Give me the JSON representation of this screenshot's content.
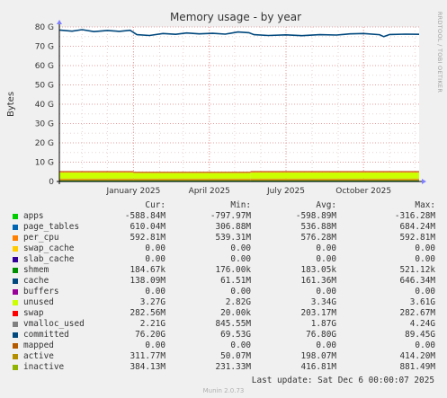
{
  "chart_data": {
    "type": "area",
    "title": "Memory usage - by year",
    "ylabel": "Bytes",
    "side_text": "RRDTOOL / TOBI OETIKER",
    "y_unit": "G",
    "ylim": [
      0,
      80
    ],
    "y_ticks": [
      0,
      10,
      20,
      30,
      40,
      50,
      60,
      70,
      80
    ],
    "y_tick_labels": [
      "0",
      "10 G",
      "20 G",
      "30 G",
      "40 G",
      "50 G",
      "60 G",
      "70 G",
      "80 G"
    ],
    "x_range": [
      "2024-10-05",
      "2025-12-06"
    ],
    "x_ticks": [
      {
        "label": "January 2025",
        "date": "2025-01-01"
      },
      {
        "label": "April 2025",
        "date": "2025-04-01"
      },
      {
        "label": "July 2025",
        "date": "2025-07-01"
      },
      {
        "label": "October 2025",
        "date": "2025-10-01"
      }
    ],
    "grid": true,
    "stack_segments": [
      {
        "from": "2024-10-05",
        "to": "2025-01-01",
        "layers": [
          0.61,
          0.59,
          0.18,
          0.14,
          3.27,
          0.28,
          0.31
        ]
      },
      {
        "from": "2025-01-01",
        "to": "2025-05-20",
        "layers": [
          0.61,
          0.59,
          0.18,
          0.14,
          3.0,
          0.25,
          0.31
        ]
      },
      {
        "from": "2025-05-20",
        "to": "2025-12-06",
        "layers": [
          0.61,
          0.59,
          0.18,
          0.14,
          3.27,
          0.28,
          0.31
        ]
      }
    ],
    "committed_line": [
      [
        "2024-10-05",
        78.4
      ],
      [
        "2024-10-20",
        77.8
      ],
      [
        "2024-11-01",
        78.6
      ],
      [
        "2024-11-15",
        77.6
      ],
      [
        "2024-12-01",
        78.2
      ],
      [
        "2024-12-15",
        77.7
      ],
      [
        "2024-12-28",
        78.3
      ],
      [
        "2025-01-05",
        76.0
      ],
      [
        "2025-01-20",
        75.6
      ],
      [
        "2025-02-05",
        76.6
      ],
      [
        "2025-02-20",
        76.2
      ],
      [
        "2025-03-05",
        76.9
      ],
      [
        "2025-03-20",
        76.4
      ],
      [
        "2025-04-05",
        76.7
      ],
      [
        "2025-04-20",
        76.3
      ],
      [
        "2025-05-05",
        77.4
      ],
      [
        "2025-05-18",
        77.0
      ],
      [
        "2025-05-24",
        76.0
      ],
      [
        "2025-06-10",
        75.6
      ],
      [
        "2025-07-01",
        75.9
      ],
      [
        "2025-07-20",
        75.5
      ],
      [
        "2025-08-10",
        76.0
      ],
      [
        "2025-08-30",
        75.8
      ],
      [
        "2025-09-15",
        76.4
      ],
      [
        "2025-10-01",
        76.6
      ],
      [
        "2025-10-20",
        76.0
      ],
      [
        "2025-10-25",
        75.0
      ],
      [
        "2025-11-01",
        76.1
      ],
      [
        "2025-11-20",
        76.3
      ],
      [
        "2025-12-06",
        76.2
      ]
    ],
    "headers": [
      "Cur:",
      "Min:",
      "Avg:",
      "Max:"
    ],
    "series": [
      {
        "name": "apps",
        "color": "#00cc00",
        "cur": "-588.84M",
        "min": "-797.97M",
        "avg": "-598.89M",
        "max": "-316.28M"
      },
      {
        "name": "page_tables",
        "color": "#0066b3",
        "cur": "610.04M",
        "min": "306.88M",
        "avg": "536.88M",
        "max": "684.24M"
      },
      {
        "name": "per_cpu",
        "color": "#ff8000",
        "cur": "592.81M",
        "min": "539.31M",
        "avg": "576.28M",
        "max": "592.81M"
      },
      {
        "name": "swap_cache",
        "color": "#ffcc00",
        "cur": "0.00",
        "min": "0.00",
        "avg": "0.00",
        "max": "0.00"
      },
      {
        "name": "slab_cache",
        "color": "#330099",
        "cur": "0.00",
        "min": "0.00",
        "avg": "0.00",
        "max": "0.00"
      },
      {
        "name": "shmem",
        "color": "#990099",
        "cur": "184.67k",
        "min": "176.00k",
        "avg": "183.05k",
        "max": "521.12k"
      },
      {
        "name": "cache",
        "color": "#ccff00",
        "cur": "138.09M",
        "min": "61.51M",
        "avg": "161.36M",
        "max": "646.34M"
      },
      {
        "name": "buffers",
        "color": "#ff0000",
        "cur": "0.00",
        "min": "0.00",
        "avg": "0.00",
        "max": "0.00"
      },
      {
        "name": "unused",
        "color": "#808080",
        "cur": "3.27G",
        "min": "2.82G",
        "avg": "3.34G",
        "max": "3.61G"
      },
      {
        "name": "swap",
        "color": "#008f00",
        "cur": "282.56M",
        "min": "20.00k",
        "avg": "203.17M",
        "max": "282.67M"
      },
      {
        "name": "vmalloc_used",
        "color": "#00487d",
        "cur": "2.21G",
        "min": "845.55M",
        "avg": "1.87G",
        "max": "4.24G"
      },
      {
        "name": "committed",
        "color": "#b35a00",
        "cur": "76.20G",
        "min": "69.53G",
        "avg": "76.80G",
        "max": "89.45G"
      },
      {
        "name": "mapped",
        "color": "#b38f00",
        "cur": "0.00",
        "min": "0.00",
        "avg": "0.00",
        "max": "0.00"
      },
      {
        "name": "active",
        "color": "#6b006b",
        "cur": "311.77M",
        "min": "50.07M",
        "avg": "198.07M",
        "max": "414.20M"
      },
      {
        "name": "inactive",
        "color": "#8fb300",
        "cur": "384.13M",
        "min": "231.33M",
        "avg": "416.81M",
        "max": "881.49M"
      }
    ],
    "legend_swatch_colors": [
      "#00cc00",
      "#0066b3",
      "#ff8000",
      "#ffcc00",
      "#330099",
      "#008f00",
      "#00487d",
      "#990099",
      "#ccff00",
      "#ff0000",
      "#808080",
      "#00487d",
      "#b35a00",
      "#b38f00",
      "#8fb300"
    ],
    "stack_colors": [
      "#008f00",
      "#ff8000",
      "#ccff00",
      "#b38f00",
      "#ccff00",
      "#ff0000",
      "#b35a00"
    ],
    "committed_color": "#00487d",
    "last_update": "Last update:  Sat Dec  6 00:00:07 2025",
    "munin_version": "Munin 2.0.73"
  }
}
